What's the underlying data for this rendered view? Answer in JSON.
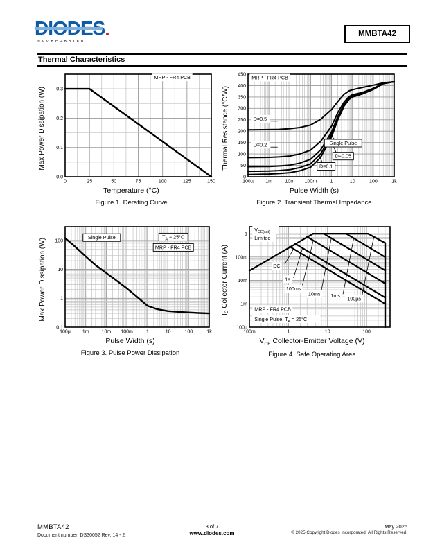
{
  "page": {
    "logo": {
      "brand": "DIODES",
      "sub": "INCORPORATED"
    },
    "part_number": "MMBTA42",
    "section_title": "Thermal Characteristics",
    "colors": {
      "logo_blue": "#0d5aa7",
      "logo_stripe": "#7fb0d9",
      "logo_red": "#c1272d",
      "ink": "#000000",
      "grid_minor": "#c2c2c2",
      "grid_major": "#9a9a9a"
    },
    "footer": {
      "part": "MMBTA42",
      "doc_number": "Document number: DS30052 Rev. 14 - 2",
      "page_info": "3 of 7",
      "website": "www.diodes.com",
      "date": "May 2025",
      "copyright": "© 2025 Copyright Diodes Incorporated. All Rights Reserved."
    }
  },
  "chart_data": [
    {
      "id": "fig1",
      "type": "line",
      "title": "Figure 1. Derating Curve",
      "xlabel": "Temperature (°C)",
      "ylabel": "Max Power Dissipation (W)",
      "xscale": "linear",
      "yscale": "linear",
      "xlim": [
        0,
        150
      ],
      "ylim": [
        0,
        0.35
      ],
      "xminor": 12.5,
      "yminor": 0.05,
      "xticks": [
        0,
        25,
        50,
        75,
        100,
        125,
        150
      ],
      "xtick_labels": [
        "0",
        "25",
        "50",
        "75",
        "100",
        "125",
        "150"
      ],
      "yticks": [
        0,
        0.1,
        0.2,
        0.3
      ],
      "ytick_labels": [
        "0.0",
        "0.1",
        "0.2",
        "0.3"
      ],
      "grid": true,
      "legend": "none",
      "series": [
        {
          "name": "derating",
          "w": 2.4,
          "points": [
            [
              0,
              0.3
            ],
            [
              25,
              0.3
            ],
            [
              150,
              0
            ]
          ]
        }
      ],
      "annotations": [
        {
          "text": "MRP - FR4 PCB",
          "x": 110,
          "y": 0.333,
          "anchor": "middle",
          "boxed": false
        }
      ],
      "leaders": []
    },
    {
      "id": "fig2",
      "type": "line",
      "title": "Figure 2. Transient Thermal Impedance",
      "xlabel": "Pulse Width (s)",
      "ylabel": "Thermal Resistance (°C/W)",
      "xscale": "log",
      "yscale": "linear",
      "xlim": [
        0.0001,
        1000.0
      ],
      "ylim": [
        0,
        450
      ],
      "yminor": 50,
      "xticks": [
        0.0001,
        0.001,
        0.01,
        0.1,
        1,
        10,
        100,
        1000
      ],
      "xtick_labels": [
        "100µ",
        "1m",
        "10m",
        "100m",
        "1",
        "10",
        "100",
        "1k"
      ],
      "yticks": [
        0,
        50,
        100,
        150,
        200,
        250,
        300,
        350,
        400,
        450
      ],
      "ytick_labels": [
        "0",
        "50",
        "100",
        "150",
        "200",
        "250",
        "300",
        "350",
        "400",
        "450"
      ],
      "grid": true,
      "legend": "inline-labels",
      "series": [
        {
          "name": "D=0.5",
          "w": 2,
          "points": [
            [
              0.0001,
              206
            ],
            [
              0.001,
              207
            ],
            [
              0.003,
              208
            ],
            [
              0.01,
              211
            ],
            [
              0.03,
              216
            ],
            [
              0.1,
              227
            ],
            [
              0.3,
              252
            ],
            [
              1,
              295
            ],
            [
              2,
              330
            ],
            [
              4,
              362
            ],
            [
              7,
              377
            ],
            [
              10,
              382
            ],
            [
              30,
              392
            ],
            [
              100,
              402
            ],
            [
              300,
              412
            ],
            [
              1000,
              417
            ]
          ]
        },
        {
          "name": "D=0.2",
          "w": 2,
          "points": [
            [
              0.0001,
              84
            ],
            [
              0.001,
              85
            ],
            [
              0.003,
              87
            ],
            [
              0.01,
              91
            ],
            [
              0.03,
              100
            ],
            [
              0.1,
              117
            ],
            [
              0.3,
              155
            ],
            [
              1,
              222
            ],
            [
              2,
              282
            ],
            [
              4,
              328
            ],
            [
              7,
              352
            ],
            [
              10,
              360
            ],
            [
              30,
              370
            ],
            [
              100,
              388
            ],
            [
              300,
              410
            ],
            [
              1000,
              417
            ]
          ]
        },
        {
          "name": "D=0.1",
          "w": 2,
          "points": [
            [
              0.0001,
              44
            ],
            [
              0.001,
              45
            ],
            [
              0.003,
              47
            ],
            [
              0.01,
              51
            ],
            [
              0.03,
              60
            ],
            [
              0.1,
              77
            ],
            [
              0.3,
              118
            ],
            [
              1,
              196
            ],
            [
              2,
              265
            ],
            [
              4,
              318
            ],
            [
              7,
              346
            ],
            [
              10,
              355
            ],
            [
              30,
              366
            ],
            [
              100,
              385
            ],
            [
              300,
              409
            ],
            [
              1000,
              417
            ]
          ]
        },
        {
          "name": "D=0.05",
          "w": 2,
          "points": [
            [
              0.0001,
              24
            ],
            [
              0.001,
              25
            ],
            [
              0.003,
              27
            ],
            [
              0.01,
              31
            ],
            [
              0.03,
              40
            ],
            [
              0.1,
              57
            ],
            [
              0.3,
              100
            ],
            [
              1,
              185
            ],
            [
              2,
              258
            ],
            [
              4,
              315
            ],
            [
              7,
              343
            ],
            [
              10,
              352
            ],
            [
              30,
              364
            ],
            [
              100,
              384
            ],
            [
              300,
              409
            ],
            [
              1000,
              417
            ]
          ]
        },
        {
          "name": "Single Pulse",
          "w": 2,
          "points": [
            [
              0.0001,
              10
            ],
            [
              0.001,
              12
            ],
            [
              0.003,
              14
            ],
            [
              0.01,
              18
            ],
            [
              0.03,
              26
            ],
            [
              0.1,
              42
            ],
            [
              0.3,
              85
            ],
            [
              1,
              175
            ],
            [
              2,
              250
            ],
            [
              4,
              310
            ],
            [
              7,
              340
            ],
            [
              10,
              350
            ],
            [
              30,
              363
            ],
            [
              100,
              383
            ],
            [
              300,
              408
            ],
            [
              1000,
              417
            ]
          ]
        }
      ],
      "annotations": [
        {
          "text": "MRP - FR4 PCB",
          "x": 0.00015,
          "y": 427,
          "anchor": "start",
          "boxed": false
        },
        {
          "text": "D=0.5",
          "x": 0.00018,
          "y": 247,
          "anchor": "start",
          "boxed": false
        },
        {
          "text": "D=0.2",
          "x": 0.00018,
          "y": 133,
          "anchor": "start",
          "boxed": false
        },
        {
          "text": "Single Pulse",
          "x": 3.6,
          "y": 140,
          "anchor": "middle",
          "boxed": true
        },
        {
          "text": "D=0.05",
          "x": 3.6,
          "y": 83,
          "anchor": "middle",
          "boxed": true
        },
        {
          "text": "D=0.1",
          "x": 0.55,
          "y": 38,
          "anchor": "middle",
          "boxed": true
        }
      ],
      "leaders": [
        [
          [
            0.0012,
            244
          ],
          [
            0.0026,
            244
          ]
        ],
        [
          [
            0.0012,
            130
          ],
          [
            0.0026,
            130
          ]
        ],
        [
          [
            1.9,
            152
          ],
          [
            1.0,
            178
          ]
        ],
        [
          [
            1.9,
            95
          ],
          [
            0.85,
            165
          ]
        ],
        [
          [
            0.4,
            50
          ],
          [
            0.24,
            106
          ]
        ]
      ]
    },
    {
      "id": "fig3",
      "type": "line",
      "title": "Figure 3. Pulse Power Dissipation",
      "xlabel": "Pulse Width (s)",
      "ylabel": "Max Power Dissipation (W)",
      "xscale": "log",
      "yscale": "log",
      "xlim": [
        0.0001,
        1000.0
      ],
      "ylim": [
        0.1,
        300
      ],
      "xticks": [
        0.0001,
        0.001,
        0.01,
        0.1,
        1,
        10,
        100,
        1000
      ],
      "xtick_labels": [
        "100µ",
        "1m",
        "10m",
        "100m",
        "1",
        "10",
        "100",
        "1k"
      ],
      "yticks": [
        0.1,
        1,
        10,
        100
      ],
      "ytick_labels": [
        "0.1",
        "1",
        "10",
        "100"
      ],
      "grid": true,
      "legend": "inline-labels",
      "series": [
        {
          "name": "single-pulse-power",
          "w": 2.4,
          "points": [
            [
              0.0001,
              120
            ],
            [
              0.0003,
              62
            ],
            [
              0.001,
              28
            ],
            [
              0.003,
              14
            ],
            [
              0.01,
              7.5
            ],
            [
              0.03,
              4.2
            ],
            [
              0.1,
              2.2
            ],
            [
              0.3,
              1.15
            ],
            [
              1,
              0.55
            ],
            [
              3,
              0.42
            ],
            [
              10,
              0.36
            ],
            [
              30,
              0.34
            ],
            [
              100,
              0.325
            ],
            [
              300,
              0.31
            ],
            [
              1000,
              0.3
            ]
          ]
        }
      ],
      "annotations": [
        {
          "text": "Single Pulse",
          "x": 0.006,
          "y": 110,
          "anchor": "middle",
          "boxed": true
        },
        {
          "parts": [
            {
              "t": "T"
            },
            {
              "t": "A",
              "sub": true
            },
            {
              "t": " = 25°C"
            }
          ],
          "x": 18,
          "y": 115,
          "anchor": "middle",
          "boxed": true
        },
        {
          "text": "MRP - FR4 PCB",
          "x": 18,
          "y": 50,
          "anchor": "middle",
          "boxed": true
        }
      ],
      "leaders": []
    },
    {
      "id": "fig4",
      "type": "line",
      "title": "Figure 4. Safe Operating Area",
      "xlabel_parts": {
        "pre": "V",
        "sub": "CE",
        "rest": "  Collector-Emitter Voltage (V)"
      },
      "ylabel_parts": {
        "pre": "I",
        "sub": "C",
        "rest": "  Collector Current (A)"
      },
      "xlabel": "VCE Collector-Emitter Voltage (V)",
      "ylabel": "IC Collector Current (A)",
      "xscale": "log",
      "yscale": "log",
      "xlim": [
        0.1,
        400
      ],
      "ylim": [
        0.0001,
        2
      ],
      "xticks": [
        0.1,
        1,
        10,
        100
      ],
      "xtick_labels": [
        "100m",
        "1",
        "10",
        "100"
      ],
      "yticks": [
        0.0001,
        0.001,
        0.01,
        0.1,
        1
      ],
      "ytick_labels": [
        "100µ",
        "1m",
        "10m",
        "100m",
        "1"
      ],
      "grid": true,
      "legend": "inline-labels",
      "series": [
        {
          "name": "vce-sat-limit",
          "w": 2.2,
          "points": [
            [
              0.1,
              0.026
            ],
            [
              4.3,
              1
            ]
          ]
        },
        {
          "name": "ic-max-cap",
          "w": 2.2,
          "points": [
            [
              4.3,
              1
            ],
            [
              110,
              1
            ]
          ]
        },
        {
          "name": "DC",
          "w": 2.2,
          "points": [
            [
              1.08,
              0.28
            ],
            [
              300,
              0.001
            ]
          ]
        },
        {
          "name": "1s",
          "w": 2.2,
          "points": [
            [
              1.5,
              0.37
            ],
            [
              300,
              0.00185
            ]
          ]
        },
        {
          "name": "100ms",
          "w": 2.2,
          "points": [
            [
              3.0,
              0.74
            ],
            [
              300,
              0.0074
            ]
          ]
        },
        {
          "name": "10ms",
          "w": 2.2,
          "points": [
            [
              8,
              1
            ],
            [
              300,
              0.0267
            ]
          ]
        },
        {
          "name": "1ms",
          "w": 2.2,
          "points": [
            [
              30,
              1
            ],
            [
              300,
              0.1
            ]
          ]
        },
        {
          "name": "100µs",
          "w": 2.2,
          "points": [
            [
              110,
              1
            ],
            [
              300,
              0.4
            ]
          ]
        },
        {
          "name": "300V-limit",
          "w": 2.4,
          "points": [
            [
              300,
              0.4
            ],
            [
              300,
              0.0001
            ]
          ]
        }
      ],
      "annotations": [
        {
          "parts": [
            {
              "t": "V"
            },
            {
              "t": "CE(sat)",
              "sub": true
            }
          ],
          "x": 0.135,
          "y": 1.25,
          "anchor": "start",
          "boxed": false
        },
        {
          "text": "Limited",
          "x": 0.135,
          "y": 0.55,
          "anchor": "start",
          "boxed": false
        },
        {
          "text": "DC",
          "x": 0.5,
          "y": 0.035,
          "anchor": "middle",
          "boxed": false
        },
        {
          "text": "1s",
          "x": 0.95,
          "y": 0.0095,
          "anchor": "middle",
          "boxed": false
        },
        {
          "text": "100ms",
          "x": 1.35,
          "y": 0.0037,
          "anchor": "middle",
          "boxed": false
        },
        {
          "text": "10ms",
          "x": 4.6,
          "y": 0.0022,
          "anchor": "middle",
          "boxed": false
        },
        {
          "text": "1ms",
          "x": 16,
          "y": 0.0019,
          "anchor": "middle",
          "boxed": false
        },
        {
          "text": "100µs",
          "x": 48,
          "y": 0.0014,
          "anchor": "middle",
          "boxed": false
        },
        {
          "text": "MRP - FR4 PCB",
          "x": 0.135,
          "y": 0.0005,
          "anchor": "start",
          "boxed": false
        },
        {
          "parts": [
            {
              "t": "Single Pulse. T"
            },
            {
              "t": "A",
              "sub": true
            },
            {
              "t": " = 25°C"
            }
          ],
          "x": 0.135,
          "y": 0.000185,
          "anchor": "start",
          "boxed": false
        }
      ],
      "leaders": [
        [
          [
            0.8,
            0.05
          ],
          [
            1.35,
            0.22
          ]
        ],
        [
          [
            1.35,
            0.013
          ],
          [
            2.3,
            0.24
          ]
        ],
        [
          [
            2.2,
            0.005
          ],
          [
            4.3,
            0.5
          ]
        ],
        [
          [
            6.8,
            0.003
          ],
          [
            12.5,
            0.64
          ]
        ],
        [
          [
            25,
            0.0026
          ],
          [
            47,
            0.64
          ]
        ],
        [
          [
            75,
            0.0019
          ],
          [
            155,
            0.77
          ]
        ]
      ]
    }
  ]
}
